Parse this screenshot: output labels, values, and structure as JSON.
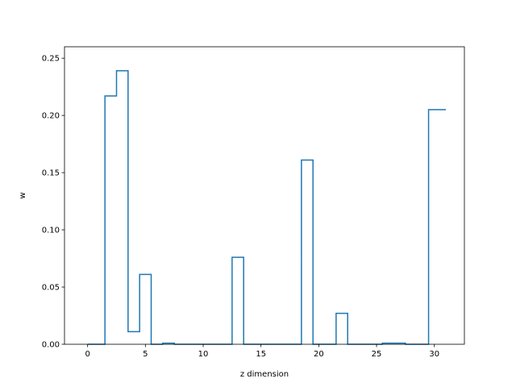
{
  "chart_data": {
    "type": "line",
    "style": "step",
    "xlabel": "z dimension",
    "ylabel": "w",
    "xlim": [
      -2.0,
      32.6
    ],
    "ylim": [
      0.0,
      0.26
    ],
    "xticks": [
      0,
      5,
      10,
      15,
      20,
      25,
      30
    ],
    "yticks": [
      0.0,
      0.05,
      0.1,
      0.15,
      0.2,
      0.25
    ],
    "ytick_labels": [
      "0.00",
      "0.05",
      "0.10",
      "0.15",
      "0.20",
      "0.25"
    ],
    "x_range": [
      0,
      31
    ],
    "values": [
      0.0,
      0.0,
      0.217,
      0.239,
      0.011,
      0.061,
      0.0,
      0.001,
      0.0,
      0.0,
      0.0,
      0.0,
      0.0,
      0.076,
      0.0,
      0.0,
      0.0,
      0.0,
      0.0,
      0.161,
      0.0,
      0.0,
      0.027,
      0.0,
      0.0,
      0.0,
      0.001,
      0.001,
      0.0,
      0.0,
      0.205
    ],
    "grid": false,
    "colors": {
      "line": "#1f77b4"
    }
  }
}
